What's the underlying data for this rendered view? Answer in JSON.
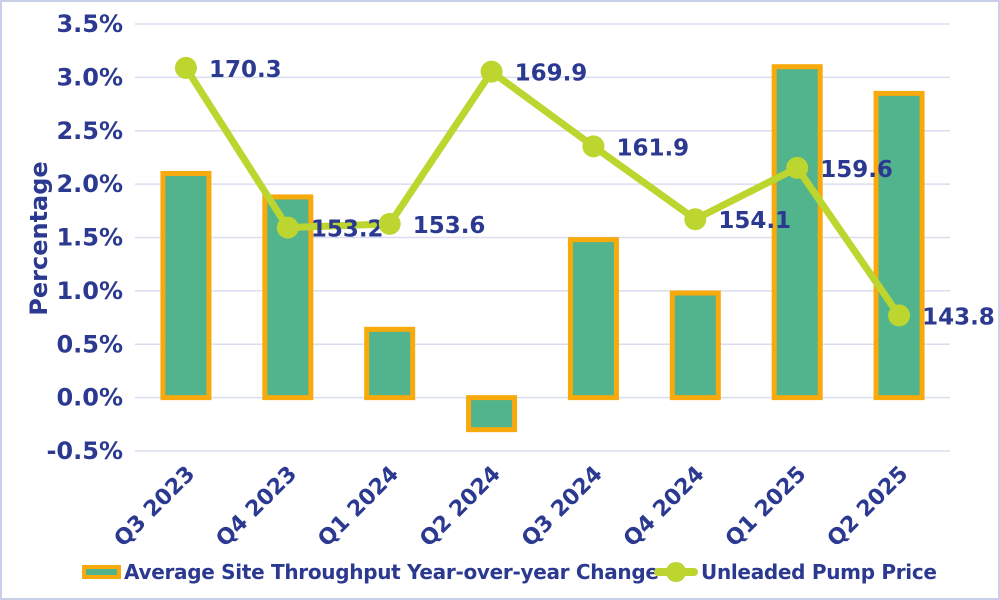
{
  "colors": {
    "text_navy": "#2B3990",
    "bar_fill": "#52B48C",
    "bar_border": "#F8A90C",
    "line_green": "#BDD52F",
    "gridline": "#D9DDEF",
    "frame_border": "#C9CEE9",
    "background": "#FFFFFF"
  },
  "chart_data": {
    "type": "bar",
    "subtype": "combo-bar-line",
    "title": "",
    "xlabel": "",
    "ylabel": "Percentage",
    "categories": [
      "Q3 2023",
      "Q4 2023",
      "Q1 2024",
      "Q2 2024",
      "Q3 2024",
      "Q4 2024",
      "Q1 2025",
      "Q2 2025"
    ],
    "y_tick_values": [
      3.5,
      3.0,
      2.5,
      2.0,
      1.5,
      1.0,
      0.5,
      0.0,
      -0.5
    ],
    "y_tick_labels": [
      "3.5%",
      "3.0%",
      "2.5%",
      "2.0%",
      "1.5%",
      "1.0%",
      "0.5%",
      "0.0%",
      "-0.5%"
    ],
    "ylim": [
      -0.5,
      3.5
    ],
    "grid": true,
    "legend_position": "bottom",
    "series": [
      {
        "name": "Average Site Throughput Year-over-year Change",
        "type": "bar",
        "axis": "left-percent",
        "values_percent": [
          2.1,
          1.88,
          0.64,
          -0.3,
          1.48,
          0.98,
          3.1,
          2.85
        ]
      },
      {
        "name": "Unleaded Pump Price",
        "type": "line",
        "axis": "hidden-secondary",
        "values": [
          170.3,
          153.2,
          153.6,
          169.9,
          161.9,
          154.1,
          159.6,
          143.8
        ],
        "data_labels": [
          "170.3",
          "153.2",
          "153.6",
          "169.9",
          "161.9",
          "154.1",
          "159.6",
          "143.8"
        ],
        "implied_secondary_axis": {
          "price_range": [
            135,
            175
          ],
          "maps_to_percent": [
            0,
            3.5
          ]
        }
      }
    ]
  }
}
